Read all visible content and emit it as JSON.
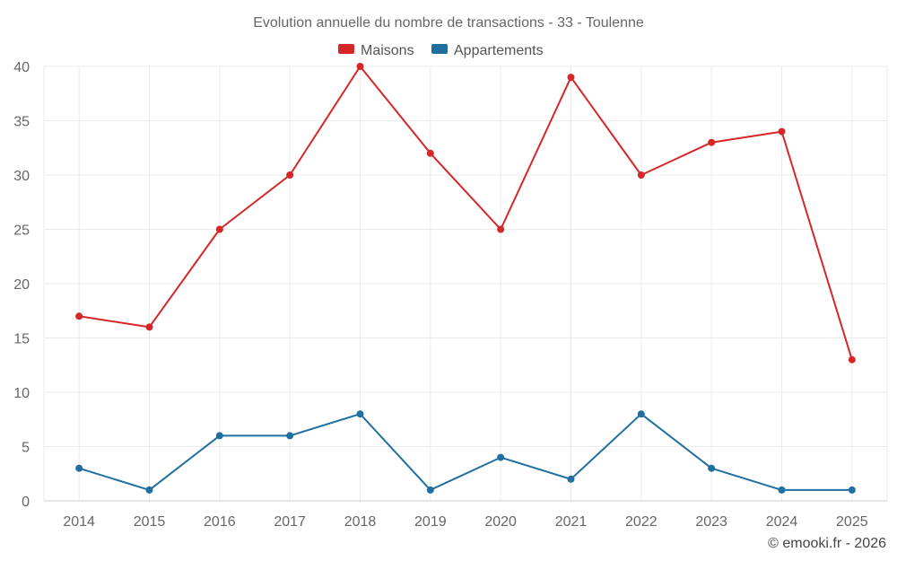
{
  "chart_data": {
    "type": "line",
    "title": "Evolution annuelle du nombre de transactions - 33 - Toulenne",
    "categories": [
      "2014",
      "2015",
      "2016",
      "2017",
      "2018",
      "2019",
      "2020",
      "2021",
      "2022",
      "2023",
      "2024",
      "2025"
    ],
    "series": [
      {
        "name": "Maisons",
        "color": "#d62728",
        "values": [
          17,
          16,
          25,
          30,
          40,
          32,
          25,
          39,
          30,
          33,
          34,
          13
        ]
      },
      {
        "name": "Appartements",
        "color": "#1f6fa0",
        "values": [
          3,
          1,
          6,
          6,
          8,
          1,
          4,
          2,
          8,
          3,
          1,
          1
        ]
      }
    ],
    "ylim": [
      0,
      40
    ],
    "yticks": [
      0,
      5,
      10,
      15,
      20,
      25,
      30,
      35,
      40
    ],
    "grid": true,
    "legend_position": "top-center",
    "footer": "© emooki.fr - 2026"
  }
}
